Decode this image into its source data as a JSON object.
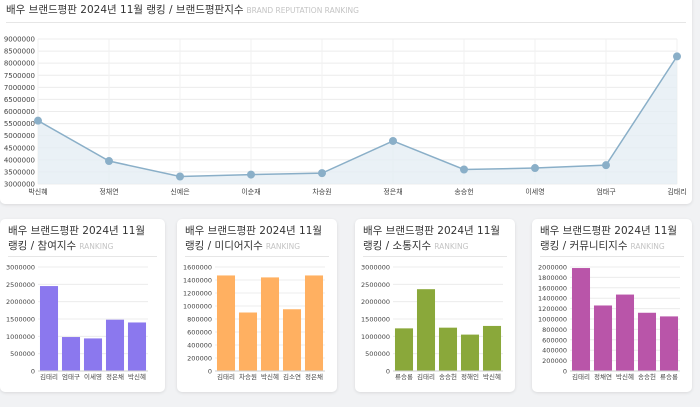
{
  "cards": [
    {
      "title": "배우 브랜드평판 2024년 11월 랭킹 / 브랜드평판지수",
      "subtitle": "BRAND REPUTATION RANKING",
      "chart_data": {
        "type": "area",
        "color": "#8aafc8",
        "categories": [
          "박신혜",
          "정채연",
          "신예은",
          "이순재",
          "차승원",
          "정은채",
          "송승헌",
          "이세영",
          "엄태구",
          "김태리"
        ],
        "values": [
          5620000,
          3950000,
          3310000,
          3390000,
          3450000,
          4780000,
          3600000,
          3660000,
          3780000,
          8280000
        ],
        "ylim": [
          3000000,
          9000000
        ],
        "yticks": [
          "3000000",
          "3500000",
          "4000000",
          "4500000",
          "5000000",
          "5500000",
          "6000000",
          "6500000",
          "7000000",
          "7500000",
          "8000000",
          "8500000",
          "9000000"
        ]
      }
    },
    {
      "title": "배우 브랜드평판 2024년 11월 랭킹 / 참여지수",
      "subtitle": "RANKING",
      "chart_data": {
        "type": "bar",
        "color": "#8b78ee",
        "categories": [
          "김태리",
          "엄태구",
          "이세영",
          "정은채",
          "박신혜"
        ],
        "values": [
          2450000,
          980000,
          940000,
          1480000,
          1400000
        ],
        "ylim": [
          0,
          3000000
        ],
        "yticks": [
          "0",
          "500000",
          "1000000",
          "1500000",
          "2000000",
          "2500000",
          "3000000"
        ]
      }
    },
    {
      "title": "배우 브랜드평판 2024년 11월 랭킹 / 미디어지수",
      "subtitle": "RANKING",
      "chart_data": {
        "type": "bar",
        "color": "#ffb061",
        "categories": [
          "김태리",
          "차승원",
          "박신혜",
          "김소연",
          "정은채"
        ],
        "values": [
          1470000,
          900000,
          1440000,
          950000,
          1470000
        ],
        "ylim": [
          0,
          1600000
        ],
        "yticks": [
          "0",
          "200000",
          "400000",
          "600000",
          "800000",
          "1000000",
          "1200000",
          "1400000",
          "1600000"
        ]
      }
    },
    {
      "title": "배우 브랜드평판 2024년 11월 랭킹 / 소통지수",
      "subtitle": "RANKING",
      "chart_data": {
        "type": "bar",
        "color": "#8aa83a",
        "categories": [
          "류승룡",
          "김태리",
          "송승헌",
          "정해인",
          "박신혜"
        ],
        "values": [
          1230000,
          2360000,
          1250000,
          1050000,
          1300000
        ],
        "ylim": [
          0,
          3000000
        ],
        "yticks": [
          "0",
          "500000",
          "1000000",
          "1500000",
          "2000000",
          "2500000",
          "3000000"
        ]
      }
    },
    {
      "title": "배우 브랜드평판 2024년 11월 랭킹 / 커뮤니티지수",
      "subtitle": "RANKING",
      "chart_data": {
        "type": "bar",
        "color": "#b955a9",
        "categories": [
          "김태리",
          "정채연",
          "박신혜",
          "송승헌",
          "류승룡"
        ],
        "values": [
          1980000,
          1260000,
          1470000,
          1120000,
          1050000
        ],
        "ylim": [
          0,
          2000000
        ],
        "yticks": [
          "0",
          "200000",
          "400000",
          "600000",
          "800000",
          "1000000",
          "1200000",
          "1400000",
          "1600000",
          "1800000",
          "2000000"
        ]
      }
    }
  ]
}
